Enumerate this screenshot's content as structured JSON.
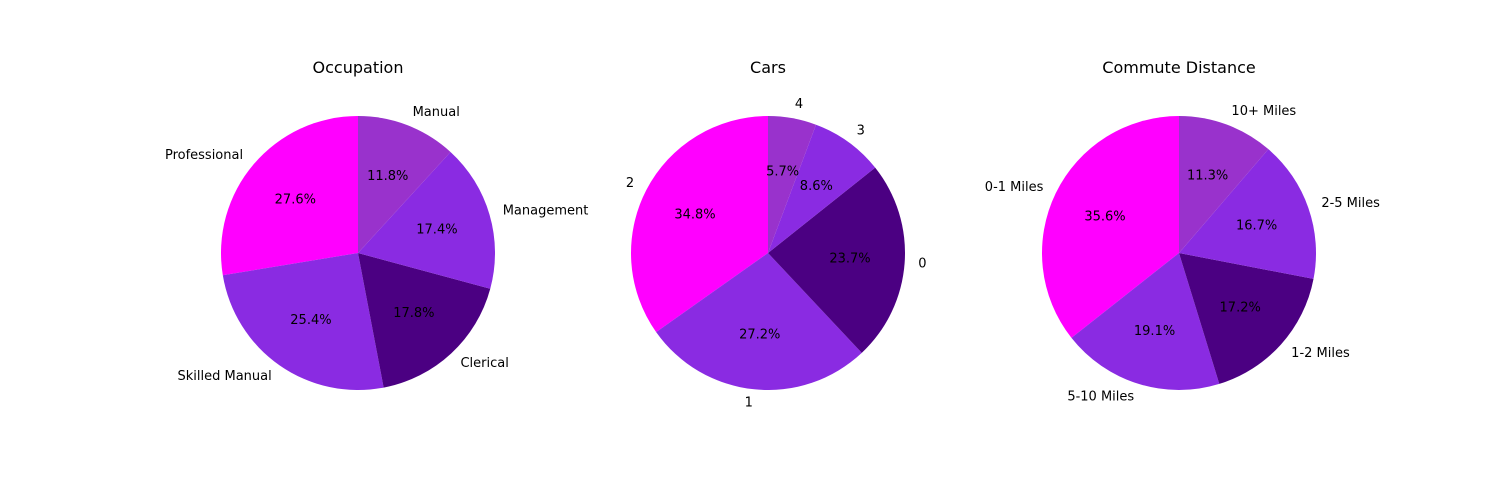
{
  "chart_data": [
    {
      "type": "pie",
      "title": "Occupation",
      "start_angle_deg": 90,
      "direction": "counterclockwise",
      "slices": [
        {
          "label": "Professional",
          "value": 27.6,
          "color": "#ff00ff"
        },
        {
          "label": "Skilled Manual",
          "value": 25.4,
          "color": "#8a2be2"
        },
        {
          "label": "Clerical",
          "value": 17.8,
          "color": "#4b0082"
        },
        {
          "label": "Management",
          "value": 17.4,
          "color": "#8a2be2"
        },
        {
          "label": "Manual",
          "value": 11.8,
          "color": "#9932cc"
        }
      ]
    },
    {
      "type": "pie",
      "title": "Cars",
      "start_angle_deg": 90,
      "direction": "counterclockwise",
      "slices": [
        {
          "label": "2",
          "value": 34.8,
          "color": "#ff00ff"
        },
        {
          "label": "1",
          "value": 27.2,
          "color": "#8a2be2"
        },
        {
          "label": "0",
          "value": 23.7,
          "color": "#4b0082"
        },
        {
          "label": "3",
          "value": 8.6,
          "color": "#8a2be2"
        },
        {
          "label": "4",
          "value": 5.7,
          "color": "#9932cc"
        }
      ]
    },
    {
      "type": "pie",
      "title": "Commute Distance",
      "start_angle_deg": 90,
      "direction": "counterclockwise",
      "slices": [
        {
          "label": "0-1 Miles",
          "value": 35.6,
          "color": "#ff00ff"
        },
        {
          "label": "5-10 Miles",
          "value": 19.1,
          "color": "#8a2be2"
        },
        {
          "label": "1-2 Miles",
          "value": 17.2,
          "color": "#4b0082"
        },
        {
          "label": "2-5 Miles",
          "value": 16.7,
          "color": "#8a2be2"
        },
        {
          "label": "10+ Miles",
          "value": 11.3,
          "color": "#9932cc"
        }
      ]
    }
  ]
}
